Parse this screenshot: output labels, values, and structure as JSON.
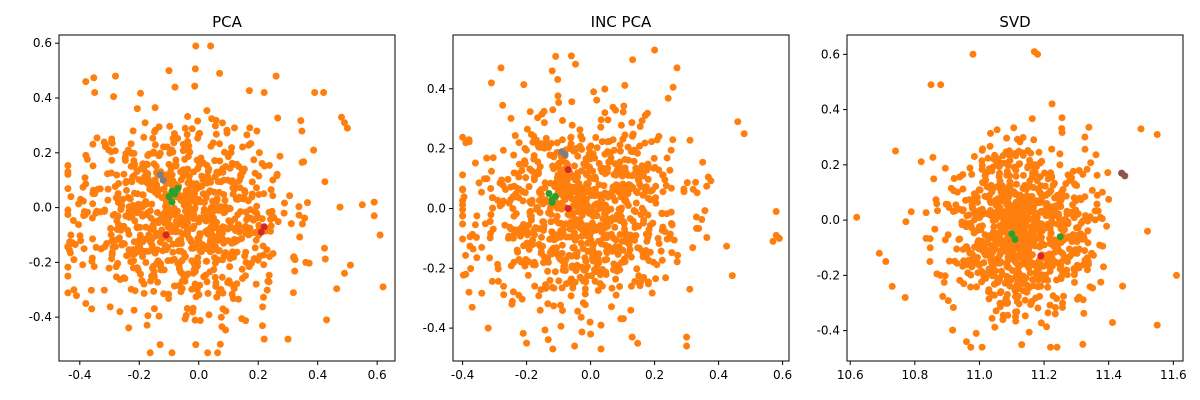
{
  "colors": {
    "main_cluster": "#ff7f0e",
    "green_points": "#2ca02c",
    "red_points": "#d62728",
    "gray_points": "#7f7f7f",
    "brown_points": "#8c564b"
  },
  "chart_data": [
    {
      "type": "scatter",
      "title": "PCA",
      "xlim": [
        -0.47,
        0.66
      ],
      "ylim": [
        -0.56,
        0.63
      ],
      "xticks": [
        "-0.4",
        "-0.2",
        "0.0",
        "0.2",
        "0.4",
        "0.6"
      ],
      "xtick_values": [
        -0.4,
        -0.2,
        0.0,
        0.2,
        0.4,
        0.6
      ],
      "yticks": [
        "-0.4",
        "-0.2",
        "0.0",
        "0.2",
        "0.4",
        "0.6"
      ],
      "ytick_values": [
        -0.4,
        -0.2,
        0.0,
        0.2,
        0.4,
        0.6
      ],
      "cloud": {
        "count": 900,
        "center": [
          -0.05,
          -0.02
        ],
        "spread": [
          0.17,
          0.17
        ],
        "limits": [
          [
            -0.44,
            0.62
          ],
          [
            -0.53,
            0.6
          ]
        ],
        "seed": 11
      },
      "series": [
        {
          "color_key": "main_cluster",
          "points": [
            [
              -0.01,
              0.59
            ],
            [
              0.04,
              0.59
            ],
            [
              -0.1,
              0.5
            ],
            [
              0.07,
              0.49
            ],
            [
              -0.28,
              0.48
            ],
            [
              0.26,
              0.48
            ],
            [
              -0.38,
              0.46
            ],
            [
              -0.35,
              0.42
            ],
            [
              0.39,
              0.42
            ],
            [
              0.42,
              0.42
            ],
            [
              0.22,
              0.42
            ],
            [
              -0.08,
              0.44
            ],
            [
              0.48,
              0.33
            ],
            [
              0.49,
              0.31
            ],
            [
              0.5,
              0.29
            ],
            [
              0.55,
              0.01
            ],
            [
              0.59,
              -0.03
            ],
            [
              0.61,
              -0.1
            ],
            [
              0.59,
              0.02
            ],
            [
              -0.43,
              0.04
            ],
            [
              -0.43,
              -0.1
            ],
            [
              -0.42,
              -0.19
            ],
            [
              -0.44,
              -0.25
            ],
            [
              -0.42,
              -0.3
            ],
            [
              -0.38,
              -0.35
            ],
            [
              -0.36,
              -0.37
            ],
            [
              -0.13,
              -0.5
            ],
            [
              -0.09,
              -0.53
            ],
            [
              -0.01,
              -0.5
            ],
            [
              0.03,
              -0.53
            ],
            [
              0.22,
              -0.48
            ],
            [
              0.3,
              -0.48
            ],
            [
              0.43,
              -0.41
            ],
            [
              0.36,
              -0.2
            ],
            [
              0.51,
              -0.21
            ],
            [
              0.49,
              -0.24
            ]
          ]
        },
        {
          "color_key": "green_points",
          "points": [
            [
              -0.09,
              0.02
            ],
            [
              -0.08,
              0.05
            ],
            [
              -0.07,
              0.07
            ],
            [
              -0.1,
              0.04
            ],
            [
              -0.09,
              0.06
            ]
          ]
        },
        {
          "color_key": "red_points",
          "points": [
            [
              -0.11,
              -0.1
            ],
            [
              0.21,
              -0.09
            ],
            [
              0.22,
              -0.07
            ]
          ]
        },
        {
          "color_key": "gray_points",
          "points": [
            [
              -0.13,
              0.12
            ],
            [
              -0.12,
              0.1
            ]
          ]
        }
      ]
    },
    {
      "type": "scatter",
      "title": "INC PCA",
      "xlim": [
        -0.43,
        0.62
      ],
      "ylim": [
        -0.51,
        0.58
      ],
      "xticks": [
        "-0.4",
        "-0.2",
        "0.0",
        "0.2",
        "0.4",
        "0.6"
      ],
      "xtick_values": [
        -0.4,
        -0.2,
        0.0,
        0.2,
        0.4,
        0.6
      ],
      "yticks": [
        "-0.4",
        "-0.2",
        "0.0",
        "0.2",
        "0.4"
      ],
      "ytick_values": [
        -0.4,
        -0.2,
        0.0,
        0.2,
        0.4
      ],
      "cloud": {
        "count": 900,
        "center": [
          -0.04,
          -0.01
        ],
        "spread": [
          0.16,
          0.16
        ],
        "limits": [
          [
            -0.4,
            0.6
          ],
          [
            -0.47,
            0.53
          ]
        ],
        "seed": 23
      },
      "series": [
        {
          "color_key": "main_cluster",
          "points": [
            [
              0.2,
              0.53
            ],
            [
              -0.06,
              0.51
            ],
            [
              -0.28,
              0.47
            ],
            [
              0.27,
              0.47
            ],
            [
              -0.31,
              0.42
            ],
            [
              -0.12,
              0.46
            ],
            [
              0.46,
              0.29
            ],
            [
              0.48,
              0.25
            ],
            [
              -0.38,
              0.23
            ],
            [
              -0.39,
              0.22
            ],
            [
              0.58,
              -0.01
            ],
            [
              0.59,
              -0.1
            ],
            [
              0.58,
              -0.09
            ],
            [
              0.57,
              -0.11
            ],
            [
              -0.39,
              -0.22
            ],
            [
              -0.38,
              -0.28
            ],
            [
              -0.37,
              -0.33
            ],
            [
              -0.32,
              -0.4
            ],
            [
              -0.2,
              -0.45
            ],
            [
              -0.05,
              -0.46
            ],
            [
              0.0,
              -0.42
            ],
            [
              0.13,
              -0.43
            ],
            [
              0.3,
              -0.46
            ],
            [
              0.3,
              -0.43
            ],
            [
              0.31,
              -0.27
            ]
          ]
        },
        {
          "color_key": "green_points",
          "points": [
            [
              -0.12,
              0.03
            ],
            [
              -0.11,
              0.04
            ],
            [
              -0.12,
              0.02
            ],
            [
              -0.13,
              0.05
            ]
          ]
        },
        {
          "color_key": "red_points",
          "points": [
            [
              -0.07,
              0.13
            ],
            [
              -0.07,
              0.0
            ]
          ]
        },
        {
          "color_key": "gray_points",
          "points": [
            [
              -0.09,
              0.19
            ],
            [
              -0.08,
              0.18
            ]
          ]
        }
      ]
    },
    {
      "type": "scatter",
      "title": "SVD",
      "xlim": [
        10.59,
        11.63
      ],
      "ylim": [
        -0.51,
        0.67
      ],
      "xticks": [
        "10.6",
        "10.8",
        "11.0",
        "11.2",
        "11.4",
        "11.6"
      ],
      "xtick_values": [
        10.6,
        10.8,
        11.0,
        11.2,
        11.4,
        11.6
      ],
      "yticks": [
        "-0.4",
        "-0.2",
        "0.0",
        "0.2",
        "0.4",
        "0.6"
      ],
      "ytick_values": [
        -0.4,
        -0.2,
        0.0,
        0.2,
        0.4,
        0.6
      ],
      "cloud": {
        "count": 900,
        "center": [
          11.13,
          -0.03
        ],
        "spread": [
          0.11,
          0.15
        ],
        "limits": [
          [
            10.62,
            11.61
          ],
          [
            -0.46,
            0.61
          ]
        ],
        "seed": 37
      },
      "series": [
        {
          "color_key": "main_cluster",
          "points": [
            [
              11.17,
              0.61
            ],
            [
              11.18,
              0.6
            ],
            [
              10.98,
              0.6
            ],
            [
              10.88,
              0.49
            ],
            [
              10.85,
              0.49
            ],
            [
              11.5,
              0.33
            ],
            [
              11.55,
              0.31
            ],
            [
              10.62,
              0.01
            ],
            [
              10.69,
              -0.12
            ],
            [
              10.71,
              -0.15
            ],
            [
              10.73,
              -0.24
            ],
            [
              10.77,
              -0.28
            ],
            [
              10.74,
              0.25
            ],
            [
              11.55,
              -0.38
            ],
            [
              11.61,
              -0.2
            ],
            [
              11.52,
              -0.04
            ],
            [
              11.22,
              -0.46
            ],
            [
              11.24,
              -0.46
            ],
            [
              11.32,
              -0.45
            ],
            [
              10.96,
              -0.44
            ],
            [
              10.99,
              -0.41
            ]
          ]
        },
        {
          "color_key": "green_points",
          "points": [
            [
              11.1,
              -0.05
            ],
            [
              11.11,
              -0.07
            ],
            [
              11.25,
              -0.06
            ]
          ]
        },
        {
          "color_key": "red_points",
          "points": [
            [
              11.19,
              -0.13
            ]
          ]
        },
        {
          "color_key": "brown_points",
          "points": [
            [
              11.45,
              0.16
            ],
            [
              11.44,
              0.17
            ]
          ]
        }
      ]
    }
  ]
}
